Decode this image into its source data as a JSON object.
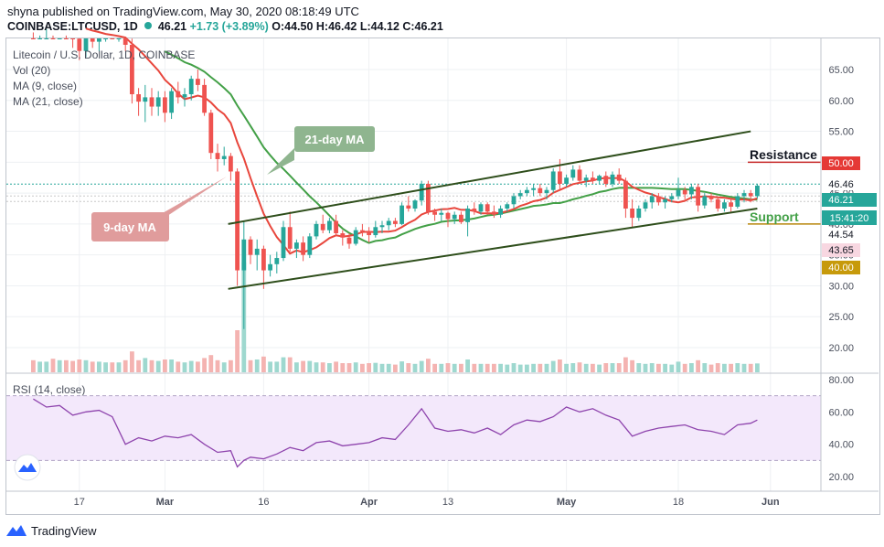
{
  "header": {
    "published": "shyna published on TradingView.com, May 30, 2020 08:18:49 UTC",
    "symbol": "COINBASE:LTCUSD, 1D",
    "price": "46.21",
    "change": "+1.73 (+3.89%)",
    "ohlc": "O:44.50 H:46.42 L:44.12 C:46.21"
  },
  "legend": {
    "title": "Litecoin / U.S. Dollar, 1D, COINBASE",
    "vol": "Vol (20)",
    "ma9": "MA (9, close)",
    "ma21": "MA (21, close)"
  },
  "rsi_label": "RSI (14, close)",
  "annotations": {
    "ma21_callout": "21-day MA",
    "ma9_callout": "9-day MA",
    "resistance": "Resistance",
    "support": "Support"
  },
  "price_tags": {
    "resistance": "50.00",
    "high_line": "46.46",
    "last": "46.21",
    "countdown": "15:41:20",
    "open_line": "44.54",
    "low_line": "43.65",
    "support": "40.00"
  },
  "footer": {
    "brand": "TradingView"
  },
  "colors": {
    "up": "#26a69a",
    "down": "#ef5350",
    "ma9": "#e8463c",
    "ma21": "#43a047",
    "channel": "#2e4e1b",
    "resistance": "#c62828",
    "support": "#b8860b",
    "rsi": "#8e44ad"
  },
  "chart_data": [
    {
      "type": "candlestick",
      "title": "Litecoin / U.S. Dollar, 1D, COINBASE",
      "x_tick_labels": [
        "17",
        "Mar",
        "16",
        "Apr",
        "13",
        "May",
        "18",
        "Jun"
      ],
      "y_tick_labels": [
        "20.00",
        "25.00",
        "30.00",
        "35.00",
        "40.00",
        "45.00",
        "50.00",
        "55.00",
        "60.00",
        "65.00"
      ],
      "ylim": [
        17,
        70
      ],
      "candles": [
        {
          "date": "2020-02-10",
          "o": 74.0,
          "h": 75.5,
          "l": 71.0,
          "c": 72.5
        },
        {
          "date": "2020-02-11",
          "o": 72.5,
          "h": 74.0,
          "l": 70.5,
          "c": 73.0
        },
        {
          "date": "2020-02-12",
          "o": 73.0,
          "h": 75.0,
          "l": 71.5,
          "c": 74.2
        },
        {
          "date": "2020-02-13",
          "o": 74.2,
          "h": 76.0,
          "l": 70.5,
          "c": 72.0
        },
        {
          "date": "2020-02-14",
          "o": 72.0,
          "h": 74.5,
          "l": 70.0,
          "c": 73.5
        },
        {
          "date": "2020-02-15",
          "o": 73.5,
          "h": 75.0,
          "l": 70.5,
          "c": 71.0
        },
        {
          "date": "2020-02-16",
          "o": 71.0,
          "h": 72.5,
          "l": 68.5,
          "c": 70.0
        },
        {
          "date": "2020-02-17",
          "o": 70.0,
          "h": 71.5,
          "l": 66.5,
          "c": 68.0
        },
        {
          "date": "2020-02-18",
          "o": 68.0,
          "h": 71.5,
          "l": 67.0,
          "c": 70.5
        },
        {
          "date": "2020-02-19",
          "o": 70.5,
          "h": 72.0,
          "l": 68.5,
          "c": 69.5
        },
        {
          "date": "2020-02-20",
          "o": 69.5,
          "h": 71.5,
          "l": 68.0,
          "c": 70.8
        },
        {
          "date": "2020-02-21",
          "o": 70.8,
          "h": 72.5,
          "l": 69.5,
          "c": 71.5
        },
        {
          "date": "2020-02-22",
          "o": 71.5,
          "h": 73.0,
          "l": 70.0,
          "c": 70.5
        },
        {
          "date": "2020-02-23",
          "o": 70.5,
          "h": 72.5,
          "l": 69.5,
          "c": 71.8
        },
        {
          "date": "2020-02-24",
          "o": 71.8,
          "h": 72.5,
          "l": 68.0,
          "c": 69.0
        },
        {
          "date": "2020-02-25",
          "o": 69.0,
          "h": 70.0,
          "l": 59.5,
          "c": 61.0
        },
        {
          "date": "2020-02-26",
          "o": 61.0,
          "h": 62.0,
          "l": 57.5,
          "c": 59.8
        },
        {
          "date": "2020-02-27",
          "o": 59.8,
          "h": 62.5,
          "l": 56.5,
          "c": 60.5
        },
        {
          "date": "2020-02-28",
          "o": 60.5,
          "h": 62.0,
          "l": 57.5,
          "c": 59.0
        },
        {
          "date": "2020-02-29",
          "o": 59.0,
          "h": 61.5,
          "l": 57.5,
          "c": 60.5
        },
        {
          "date": "2020-03-01",
          "o": 60.5,
          "h": 61.5,
          "l": 56.5,
          "c": 58.0
        },
        {
          "date": "2020-03-02",
          "o": 58.0,
          "h": 62.0,
          "l": 57.0,
          "c": 61.5
        },
        {
          "date": "2020-03-03",
          "o": 61.5,
          "h": 63.0,
          "l": 59.5,
          "c": 60.5
        },
        {
          "date": "2020-03-04",
          "o": 60.5,
          "h": 62.0,
          "l": 59.0,
          "c": 61.0
        },
        {
          "date": "2020-03-05",
          "o": 61.0,
          "h": 64.0,
          "l": 60.0,
          "c": 63.5
        },
        {
          "date": "2020-03-06",
          "o": 63.5,
          "h": 65.0,
          "l": 61.5,
          "c": 62.5
        },
        {
          "date": "2020-03-07",
          "o": 62.5,
          "h": 63.5,
          "l": 57.5,
          "c": 58.0
        },
        {
          "date": "2020-03-08",
          "o": 58.0,
          "h": 58.5,
          "l": 50.5,
          "c": 51.5
        },
        {
          "date": "2020-03-09",
          "o": 51.5,
          "h": 53.0,
          "l": 48.5,
          "c": 50.5
        },
        {
          "date": "2020-03-10",
          "o": 50.5,
          "h": 52.5,
          "l": 49.5,
          "c": 51.0
        },
        {
          "date": "2020-03-11",
          "o": 51.0,
          "h": 51.5,
          "l": 47.0,
          "c": 48.5
        },
        {
          "date": "2020-03-12",
          "o": 48.5,
          "h": 49.0,
          "l": 30.0,
          "c": 32.5
        },
        {
          "date": "2020-03-13",
          "o": 32.5,
          "h": 40.5,
          "l": 23.0,
          "c": 37.5
        },
        {
          "date": "2020-03-14",
          "o": 37.5,
          "h": 38.0,
          "l": 33.5,
          "c": 35.0
        },
        {
          "date": "2020-03-15",
          "o": 35.0,
          "h": 37.5,
          "l": 32.5,
          "c": 36.0
        },
        {
          "date": "2020-03-16",
          "o": 36.0,
          "h": 36.5,
          "l": 29.5,
          "c": 32.5
        },
        {
          "date": "2020-03-17",
          "o": 32.5,
          "h": 35.0,
          "l": 31.5,
          "c": 33.5
        },
        {
          "date": "2020-03-18",
          "o": 33.5,
          "h": 35.5,
          "l": 32.0,
          "c": 34.5
        },
        {
          "date": "2020-03-19",
          "o": 34.5,
          "h": 40.5,
          "l": 34.0,
          "c": 39.5
        },
        {
          "date": "2020-03-20",
          "o": 39.5,
          "h": 42.0,
          "l": 35.5,
          "c": 36.0
        },
        {
          "date": "2020-03-21",
          "o": 36.0,
          "h": 37.5,
          "l": 34.5,
          "c": 37.0
        },
        {
          "date": "2020-03-22",
          "o": 37.0,
          "h": 38.0,
          "l": 34.0,
          "c": 35.0
        },
        {
          "date": "2020-03-23",
          "o": 35.0,
          "h": 38.5,
          "l": 34.5,
          "c": 38.0
        },
        {
          "date": "2020-03-24",
          "o": 38.0,
          "h": 40.5,
          "l": 37.5,
          "c": 40.0
        },
        {
          "date": "2020-03-25",
          "o": 40.0,
          "h": 41.5,
          "l": 38.5,
          "c": 39.0
        },
        {
          "date": "2020-03-26",
          "o": 39.0,
          "h": 41.0,
          "l": 38.5,
          "c": 40.5
        },
        {
          "date": "2020-03-27",
          "o": 40.5,
          "h": 41.5,
          "l": 38.0,
          "c": 38.5
        },
        {
          "date": "2020-03-28",
          "o": 38.5,
          "h": 39.0,
          "l": 36.5,
          "c": 37.8
        },
        {
          "date": "2020-03-29",
          "o": 37.8,
          "h": 38.5,
          "l": 36.0,
          "c": 36.8
        },
        {
          "date": "2020-03-30",
          "o": 36.8,
          "h": 39.5,
          "l": 36.5,
          "c": 39.0
        },
        {
          "date": "2020-03-31",
          "o": 39.0,
          "h": 40.0,
          "l": 38.0,
          "c": 38.8
        },
        {
          "date": "2020-04-01",
          "o": 38.8,
          "h": 39.5,
          "l": 37.0,
          "c": 38.2
        },
        {
          "date": "2020-04-02",
          "o": 38.2,
          "h": 40.5,
          "l": 37.8,
          "c": 39.5
        },
        {
          "date": "2020-04-03",
          "o": 39.5,
          "h": 40.5,
          "l": 38.5,
          "c": 39.8
        },
        {
          "date": "2020-04-04",
          "o": 39.8,
          "h": 41.0,
          "l": 39.0,
          "c": 40.5
        },
        {
          "date": "2020-04-05",
          "o": 40.5,
          "h": 41.0,
          "l": 39.5,
          "c": 40.0
        },
        {
          "date": "2020-04-06",
          "o": 40.0,
          "h": 43.5,
          "l": 39.8,
          "c": 43.0
        },
        {
          "date": "2020-04-07",
          "o": 43.0,
          "h": 44.5,
          "l": 42.0,
          "c": 42.5
        },
        {
          "date": "2020-04-08",
          "o": 42.5,
          "h": 44.0,
          "l": 42.0,
          "c": 43.8
        },
        {
          "date": "2020-04-09",
          "o": 43.8,
          "h": 47.0,
          "l": 43.0,
          "c": 46.5
        },
        {
          "date": "2020-04-10",
          "o": 46.5,
          "h": 47.0,
          "l": 41.5,
          "c": 42.0
        },
        {
          "date": "2020-04-11",
          "o": 42.0,
          "h": 42.5,
          "l": 40.5,
          "c": 41.5
        },
        {
          "date": "2020-04-12",
          "o": 41.5,
          "h": 42.5,
          "l": 40.5,
          "c": 41.8
        },
        {
          "date": "2020-04-13",
          "o": 41.8,
          "h": 42.0,
          "l": 39.5,
          "c": 40.8
        },
        {
          "date": "2020-04-14",
          "o": 40.8,
          "h": 42.0,
          "l": 40.0,
          "c": 41.5
        },
        {
          "date": "2020-04-15",
          "o": 41.5,
          "h": 42.0,
          "l": 40.0,
          "c": 40.3
        },
        {
          "date": "2020-04-16",
          "o": 40.3,
          "h": 43.0,
          "l": 38.0,
          "c": 42.5
        },
        {
          "date": "2020-04-17",
          "o": 42.5,
          "h": 43.5,
          "l": 41.5,
          "c": 42.0
        },
        {
          "date": "2020-04-18",
          "o": 42.0,
          "h": 43.5,
          "l": 41.5,
          "c": 43.2
        },
        {
          "date": "2020-04-19",
          "o": 43.2,
          "h": 43.5,
          "l": 41.5,
          "c": 42.0
        },
        {
          "date": "2020-04-20",
          "o": 42.0,
          "h": 43.0,
          "l": 41.0,
          "c": 41.5
        },
        {
          "date": "2020-04-21",
          "o": 41.5,
          "h": 43.0,
          "l": 41.0,
          "c": 42.5
        },
        {
          "date": "2020-04-22",
          "o": 42.5,
          "h": 43.5,
          "l": 42.0,
          "c": 43.2
        },
        {
          "date": "2020-04-23",
          "o": 43.2,
          "h": 45.0,
          "l": 42.5,
          "c": 44.5
        },
        {
          "date": "2020-04-24",
          "o": 44.5,
          "h": 45.5,
          "l": 44.0,
          "c": 45.0
        },
        {
          "date": "2020-04-25",
          "o": 45.0,
          "h": 46.0,
          "l": 44.5,
          "c": 45.5
        },
        {
          "date": "2020-04-26",
          "o": 45.5,
          "h": 46.5,
          "l": 44.5,
          "c": 45.8
        },
        {
          "date": "2020-04-27",
          "o": 45.8,
          "h": 46.5,
          "l": 44.5,
          "c": 45.0
        },
        {
          "date": "2020-04-28",
          "o": 45.0,
          "h": 46.0,
          "l": 44.0,
          "c": 45.5
        },
        {
          "date": "2020-04-29",
          "o": 45.5,
          "h": 49.0,
          "l": 45.0,
          "c": 48.5
        },
        {
          "date": "2020-04-30",
          "o": 48.5,
          "h": 50.5,
          "l": 45.5,
          "c": 46.5
        },
        {
          "date": "2020-05-01",
          "o": 46.5,
          "h": 48.0,
          "l": 46.0,
          "c": 47.5
        },
        {
          "date": "2020-05-02",
          "o": 47.5,
          "h": 49.5,
          "l": 47.0,
          "c": 48.8
        },
        {
          "date": "2020-05-03",
          "o": 48.8,
          "h": 49.5,
          "l": 46.5,
          "c": 47.0
        },
        {
          "date": "2020-05-04",
          "o": 47.0,
          "h": 48.0,
          "l": 46.0,
          "c": 47.5
        },
        {
          "date": "2020-05-05",
          "o": 47.5,
          "h": 48.5,
          "l": 46.5,
          "c": 47.0
        },
        {
          "date": "2020-05-06",
          "o": 47.0,
          "h": 48.0,
          "l": 46.5,
          "c": 47.8
        },
        {
          "date": "2020-05-07",
          "o": 47.8,
          "h": 48.5,
          "l": 46.0,
          "c": 46.5
        },
        {
          "date": "2020-05-08",
          "o": 46.5,
          "h": 48.5,
          "l": 46.0,
          "c": 48.0
        },
        {
          "date": "2020-05-09",
          "o": 48.0,
          "h": 49.0,
          "l": 46.5,
          "c": 47.0
        },
        {
          "date": "2020-05-10",
          "o": 47.0,
          "h": 47.5,
          "l": 41.0,
          "c": 42.5
        },
        {
          "date": "2020-05-11",
          "o": 42.5,
          "h": 44.0,
          "l": 39.5,
          "c": 41.0
        },
        {
          "date": "2020-05-12",
          "o": 41.0,
          "h": 43.0,
          "l": 40.5,
          "c": 42.5
        },
        {
          "date": "2020-05-13",
          "o": 42.5,
          "h": 44.0,
          "l": 42.0,
          "c": 43.5
        },
        {
          "date": "2020-05-14",
          "o": 43.5,
          "h": 45.0,
          "l": 42.5,
          "c": 44.5
        },
        {
          "date": "2020-05-15",
          "o": 44.5,
          "h": 45.0,
          "l": 43.0,
          "c": 43.5
        },
        {
          "date": "2020-05-16",
          "o": 43.5,
          "h": 44.5,
          "l": 42.5,
          "c": 44.0
        },
        {
          "date": "2020-05-17",
          "o": 44.0,
          "h": 45.0,
          "l": 43.5,
          "c": 44.5
        },
        {
          "date": "2020-05-18",
          "o": 44.5,
          "h": 47.5,
          "l": 44.0,
          "c": 45.5
        },
        {
          "date": "2020-05-19",
          "o": 45.5,
          "h": 46.0,
          "l": 44.0,
          "c": 44.8
        },
        {
          "date": "2020-05-20",
          "o": 44.8,
          "h": 46.5,
          "l": 44.0,
          "c": 46.0
        },
        {
          "date": "2020-05-21",
          "o": 46.0,
          "h": 46.5,
          "l": 42.0,
          "c": 43.0
        },
        {
          "date": "2020-05-22",
          "o": 43.0,
          "h": 45.0,
          "l": 42.5,
          "c": 44.5
        },
        {
          "date": "2020-05-23",
          "o": 44.5,
          "h": 45.0,
          "l": 43.5,
          "c": 44.0
        },
        {
          "date": "2020-05-24",
          "o": 44.0,
          "h": 44.5,
          "l": 42.0,
          "c": 42.5
        },
        {
          "date": "2020-05-25",
          "o": 42.5,
          "h": 44.0,
          "l": 42.0,
          "c": 43.5
        },
        {
          "date": "2020-05-26",
          "o": 43.5,
          "h": 44.0,
          "l": 42.0,
          "c": 42.8
        },
        {
          "date": "2020-05-27",
          "o": 42.8,
          "h": 45.0,
          "l": 42.5,
          "c": 44.5
        },
        {
          "date": "2020-05-28",
          "o": 44.5,
          "h": 45.5,
          "l": 43.5,
          "c": 45.0
        },
        {
          "date": "2020-05-29",
          "o": 45.0,
          "h": 45.5,
          "l": 43.5,
          "c": 44.5
        },
        {
          "date": "2020-05-30",
          "o": 44.5,
          "h": 46.42,
          "l": 44.12,
          "c": 46.21
        }
      ],
      "channel_lines": [
        {
          "name": "upper",
          "from": {
            "date": "2020-03-12",
            "price": 40.0
          },
          "to": {
            "date": "2020-05-29",
            "price": 55.0
          }
        },
        {
          "name": "lower",
          "from": {
            "date": "2020-03-12",
            "price": 29.5
          },
          "to": {
            "date": "2020-05-30",
            "price": 42.5
          }
        }
      ],
      "levels": [
        {
          "label": "Resistance",
          "price": 50.0
        },
        {
          "label": "Support",
          "price": 40.0
        }
      ]
    },
    {
      "type": "line",
      "title": "RSI (14, close)",
      "y_tick_labels": [
        "20.00",
        "40.00",
        "60.00",
        "80.00"
      ],
      "ylim": [
        15,
        85
      ],
      "band": [
        30,
        70
      ],
      "x": [
        "2020-02-10",
        "2020-02-12",
        "2020-02-14",
        "2020-02-16",
        "2020-02-18",
        "2020-02-20",
        "2020-02-22",
        "2020-02-24",
        "2020-02-26",
        "2020-02-28",
        "2020-03-01",
        "2020-03-03",
        "2020-03-05",
        "2020-03-07",
        "2020-03-09",
        "2020-03-11",
        "2020-03-12",
        "2020-03-13",
        "2020-03-14",
        "2020-03-16",
        "2020-03-18",
        "2020-03-20",
        "2020-03-22",
        "2020-03-24",
        "2020-03-26",
        "2020-03-28",
        "2020-03-30",
        "2020-04-01",
        "2020-04-03",
        "2020-04-05",
        "2020-04-07",
        "2020-04-09",
        "2020-04-11",
        "2020-04-13",
        "2020-04-15",
        "2020-04-17",
        "2020-04-19",
        "2020-04-21",
        "2020-04-23",
        "2020-04-25",
        "2020-04-27",
        "2020-04-29",
        "2020-05-01",
        "2020-05-03",
        "2020-05-05",
        "2020-05-07",
        "2020-05-09",
        "2020-05-11",
        "2020-05-13",
        "2020-05-15",
        "2020-05-17",
        "2020-05-19",
        "2020-05-21",
        "2020-05-23",
        "2020-05-25",
        "2020-05-27",
        "2020-05-29",
        "2020-05-30"
      ],
      "values": [
        68,
        63,
        64,
        58,
        60,
        61,
        57,
        40,
        44,
        42,
        45,
        44,
        46,
        40,
        35,
        36,
        26,
        30,
        32,
        31,
        34,
        38,
        36,
        41,
        42,
        39,
        40,
        41,
        44,
        43,
        52,
        62,
        50,
        48,
        49,
        47,
        50,
        46,
        52,
        55,
        54,
        57,
        63,
        60,
        62,
        58,
        55,
        45,
        48,
        50,
        51,
        52,
        49,
        48,
        46,
        52,
        53,
        55
      ]
    }
  ]
}
